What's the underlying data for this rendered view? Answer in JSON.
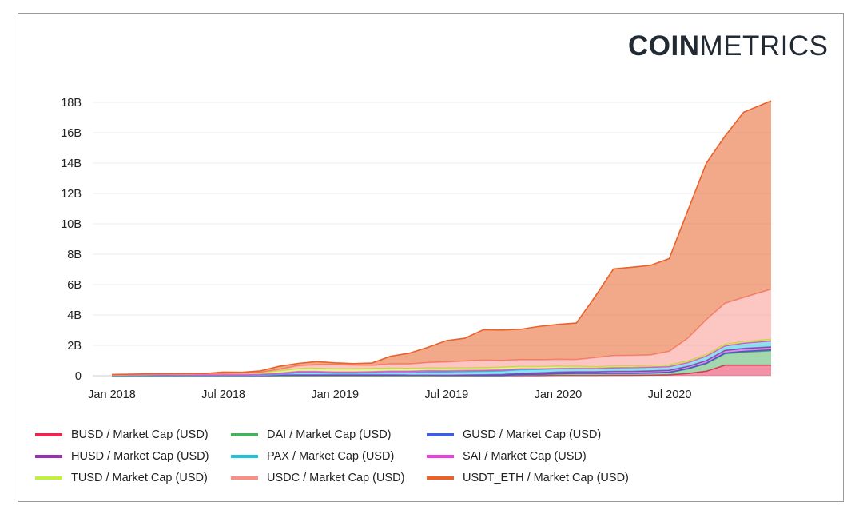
{
  "logo": {
    "bold": "COIN",
    "light": "METRICS"
  },
  "chart_data": {
    "type": "area",
    "stacked": true,
    "title": "",
    "xlabel": "",
    "ylabel": "",
    "ylim": [
      0,
      18
    ],
    "y_ticks": [
      "0",
      "2B",
      "4B",
      "6B",
      "8B",
      "10B",
      "12B",
      "14B",
      "16B",
      "18B"
    ],
    "x_ticks": [
      "Jan 2018",
      "Jul 2018",
      "Jan 2019",
      "Jul 2019",
      "Jan 2020",
      "Jul 2020"
    ],
    "x_start": "Jan 2018",
    "x_unit": "month",
    "units": "billion USD",
    "grid": true,
    "legend_position": "bottom",
    "series": [
      {
        "name": "BUSD / Market Cap (USD)",
        "color": "#e8264f",
        "values": [
          0,
          0,
          0,
          0,
          0,
          0,
          0,
          0,
          0,
          0,
          0,
          0,
          0,
          0,
          0,
          0,
          0,
          0,
          0,
          0,
          0,
          0,
          0.01,
          0.01,
          0.02,
          0.02,
          0.02,
          0.03,
          0.03,
          0.04,
          0.06,
          0.15,
          0.3,
          0.7,
          0.7,
          0.7
        ]
      },
      {
        "name": "DAI / Market Cap (USD)",
        "color": "#4caf5f",
        "values": [
          0,
          0,
          0,
          0,
          0,
          0,
          0,
          0,
          0,
          0,
          0,
          0,
          0,
          0,
          0,
          0,
          0,
          0,
          0,
          0,
          0,
          0,
          0.05,
          0.07,
          0.1,
          0.12,
          0.12,
          0.12,
          0.12,
          0.13,
          0.15,
          0.3,
          0.5,
          0.75,
          0.85,
          0.95
        ]
      },
      {
        "name": "GUSD / Market Cap (USD)",
        "color": "#3f5ed8",
        "values": [
          0,
          0,
          0,
          0,
          0,
          0,
          0,
          0,
          0.01,
          0.04,
          0.05,
          0.05,
          0.05,
          0.05,
          0.05,
          0.05,
          0.04,
          0.04,
          0.03,
          0.03,
          0.02,
          0.02,
          0.02,
          0.02,
          0.02,
          0.02,
          0.02,
          0.02,
          0.02,
          0.02,
          0.02,
          0.02,
          0.03,
          0.04,
          0.05,
          0.05
        ]
      },
      {
        "name": "HUSD / Market Cap (USD)",
        "color": "#9b2fb5",
        "values": [
          0,
          0,
          0,
          0,
          0,
          0,
          0,
          0,
          0,
          0,
          0,
          0,
          0,
          0,
          0,
          0,
          0,
          0,
          0,
          0.02,
          0.04,
          0.06,
          0.08,
          0.09,
          0.1,
          0.1,
          0.1,
          0.12,
          0.12,
          0.13,
          0.13,
          0.15,
          0.17,
          0.18,
          0.2,
          0.2
        ]
      },
      {
        "name": "PAX / Market Cap (USD)",
        "color": "#22c4dc",
        "values": [
          0,
          0,
          0,
          0,
          0,
          0,
          0,
          0,
          0.01,
          0.05,
          0.15,
          0.15,
          0.12,
          0.12,
          0.14,
          0.15,
          0.16,
          0.2,
          0.22,
          0.22,
          0.23,
          0.24,
          0.24,
          0.23,
          0.22,
          0.22,
          0.22,
          0.24,
          0.25,
          0.25,
          0.25,
          0.25,
          0.3,
          0.3,
          0.35,
          0.4
        ]
      },
      {
        "name": "SAI / Market Cap (USD)",
        "color": "#ec3fe0",
        "values": [
          0.05,
          0.07,
          0.08,
          0.08,
          0.08,
          0.08,
          0.08,
          0.08,
          0.08,
          0.08,
          0.08,
          0.08,
          0.08,
          0.08,
          0.08,
          0.1,
          0.1,
          0.1,
          0.08,
          0.08,
          0.07,
          0.07,
          0.06,
          0.04,
          0.03,
          0.02,
          0.01,
          0,
          0,
          0,
          0,
          0,
          0,
          0,
          0,
          0
        ]
      },
      {
        "name": "TUSD / Market Cap (USD)",
        "color": "#c2f03e",
        "values": [
          0,
          0,
          0.01,
          0.02,
          0.03,
          0.04,
          0.06,
          0.1,
          0.12,
          0.15,
          0.18,
          0.2,
          0.2,
          0.2,
          0.2,
          0.2,
          0.18,
          0.18,
          0.18,
          0.17,
          0.17,
          0.17,
          0.15,
          0.14,
          0.14,
          0.12,
          0.1,
          0.1,
          0.1,
          0.1,
          0.1,
          0.1,
          0.1,
          0.1,
          0.1,
          0.1
        ]
      },
      {
        "name": "USDC / Market Cap (USD)",
        "color": "#fa8f86",
        "values": [
          0,
          0,
          0,
          0,
          0,
          0,
          0,
          0,
          0,
          0.1,
          0.2,
          0.25,
          0.3,
          0.25,
          0.22,
          0.28,
          0.3,
          0.35,
          0.4,
          0.45,
          0.5,
          0.45,
          0.45,
          0.45,
          0.45,
          0.45,
          0.6,
          0.7,
          0.7,
          0.7,
          0.9,
          1.5,
          2.3,
          2.7,
          2.9,
          3.3
        ]
      },
      {
        "name": "USDT_ETH / Market Cap (USD)",
        "color": "#e8622a",
        "values": [
          0.03,
          0.03,
          0.03,
          0.03,
          0.03,
          0.03,
          0.1,
          0.05,
          0.1,
          0.2,
          0.15,
          0.2,
          0.1,
          0.1,
          0.15,
          0.5,
          0.7,
          1.0,
          1.4,
          1.5,
          2.0,
          2.0,
          2.0,
          2.2,
          2.3,
          2.4,
          4.0,
          5.7,
          5.8,
          5.9,
          6.1,
          8.4,
          10.3,
          11.0,
          12.2,
          12.4
        ]
      }
    ]
  }
}
